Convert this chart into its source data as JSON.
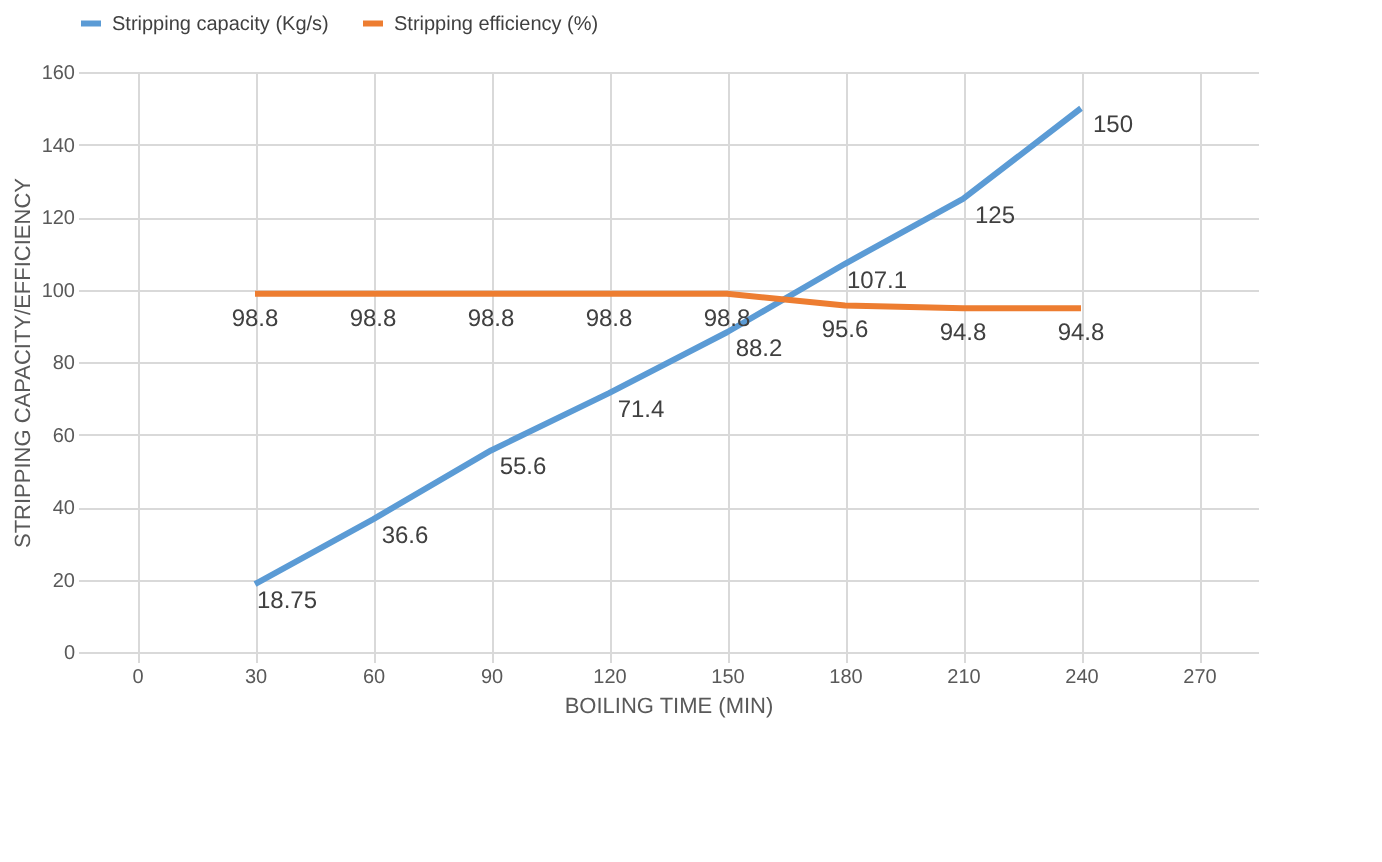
{
  "chart_data": {
    "type": "line",
    "xlabel": "BOILING TIME (MIN)",
    "ylabel": "STRIPPING CAPACITY/EFFICIENCY",
    "categories": [
      "0",
      "30",
      "60",
      "90",
      "120",
      "150",
      "180",
      "210",
      "240",
      "270"
    ],
    "series": [
      {
        "name": "Stripping capacity (Kg/s)",
        "color": "#5b9bd5",
        "values": [
          null,
          18.75,
          36.6,
          55.6,
          71.4,
          88.2,
          107.1,
          125,
          150,
          null
        ]
      },
      {
        "name": "Stripping efficiency (%)",
        "color": "#ed7d31",
        "values": [
          null,
          98.8,
          98.8,
          98.8,
          98.8,
          98.8,
          95.6,
          94.8,
          94.8,
          null
        ]
      }
    ],
    "ylim": [
      0,
      160
    ],
    "yticks": [
      0,
      20,
      40,
      60,
      80,
      100,
      120,
      140,
      160
    ],
    "grid": true,
    "legend": "top",
    "data_labels": true,
    "marker": "none",
    "line_style": "solid"
  }
}
